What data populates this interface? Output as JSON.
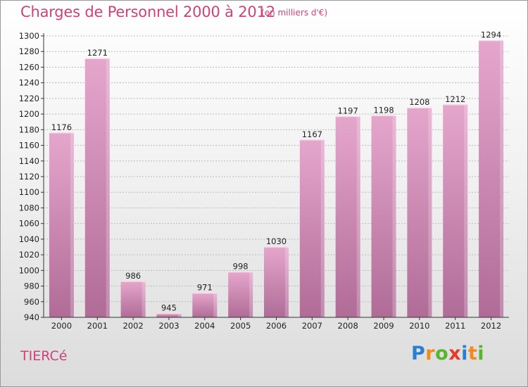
{
  "title": "Charges de Personnel 2000 à 2012",
  "subtitle": "(en milliers d'€)",
  "commune": "TIERCé",
  "logo": {
    "letters": [
      "P",
      "r",
      "o",
      "x",
      "i",
      "t",
      "i"
    ]
  },
  "colors": {
    "title": "#d0417a",
    "bar_top": "#e5a6cc",
    "bar_bottom": "#b06c97",
    "grid": "#bbbbbb"
  },
  "chart_data": {
    "type": "bar",
    "title": "Charges de Personnel 2000 à 2012",
    "subtitle": "(en milliers d'€)",
    "categories": [
      "2000",
      "2001",
      "2002",
      "2003",
      "2004",
      "2005",
      "2006",
      "2007",
      "2008",
      "2009",
      "2010",
      "2011",
      "2012"
    ],
    "values": [
      1176,
      1271,
      986,
      945,
      971,
      998,
      1030,
      1167,
      1197,
      1198,
      1208,
      1212,
      1294
    ],
    "ylim": [
      940,
      1300
    ],
    "ytick_step": 20,
    "grid": true,
    "xlabel": "",
    "ylabel": ""
  }
}
